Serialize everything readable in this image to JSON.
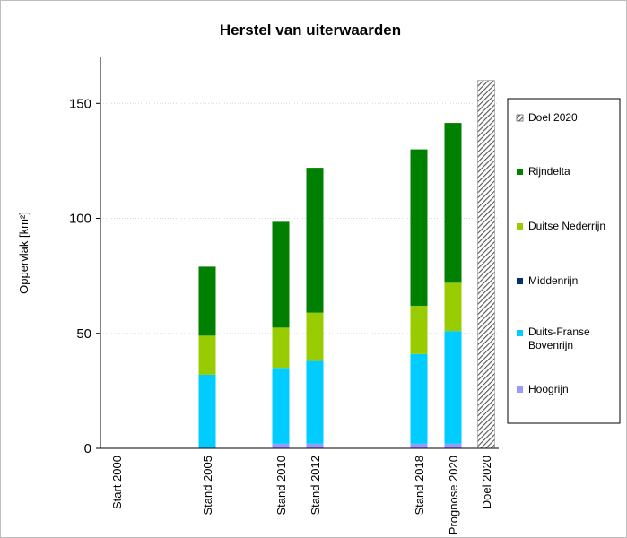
{
  "chart_data": {
    "type": "bar",
    "stacked": true,
    "title": "Herstel van uiterwaarden",
    "xlabel": "",
    "ylabel": "Oppervlak [km²]",
    "ylim": [
      0,
      170
    ],
    "yticks": [
      0,
      50,
      100,
      150
    ],
    "categories": [
      "Start 2000",
      "Stand 2005",
      "Stand 2010",
      "Stand 2012",
      "Stand 2018",
      "Prognose 2020",
      "Doel 2020"
    ],
    "series": [
      {
        "name": "Hoogrijn",
        "color": "#9999ff",
        "values": [
          0,
          0,
          2,
          2,
          2,
          2,
          0
        ]
      },
      {
        "name": "Duits-Franse Bovenrijn",
        "color": "#00ccff",
        "values": [
          0,
          32,
          33,
          36,
          39,
          49,
          0
        ]
      },
      {
        "name": "Middenrijn",
        "color": "#003366",
        "values": [
          0,
          0,
          0,
          0,
          0,
          0,
          0
        ]
      },
      {
        "name": "Duitse Nederrijn",
        "color": "#99cc00",
        "values": [
          0,
          17,
          17.5,
          21,
          21,
          21,
          0
        ]
      },
      {
        "name": "Rijndelta",
        "color": "#008000",
        "values": [
          0,
          30,
          46,
          63,
          68,
          69.5,
          0
        ]
      },
      {
        "name": "Doel 2020",
        "color": "#808080",
        "pattern": "hatch",
        "values": [
          0,
          0,
          0,
          0,
          0,
          0,
          160
        ]
      }
    ],
    "legend": {
      "placement": "right",
      "order": [
        "Doel 2020",
        "Rijndelta",
        "Duitse Nederrijn",
        "Middenrijn",
        "Duits-Franse Bovenrijn",
        "Hoogrijn"
      ]
    },
    "grid": true
  }
}
